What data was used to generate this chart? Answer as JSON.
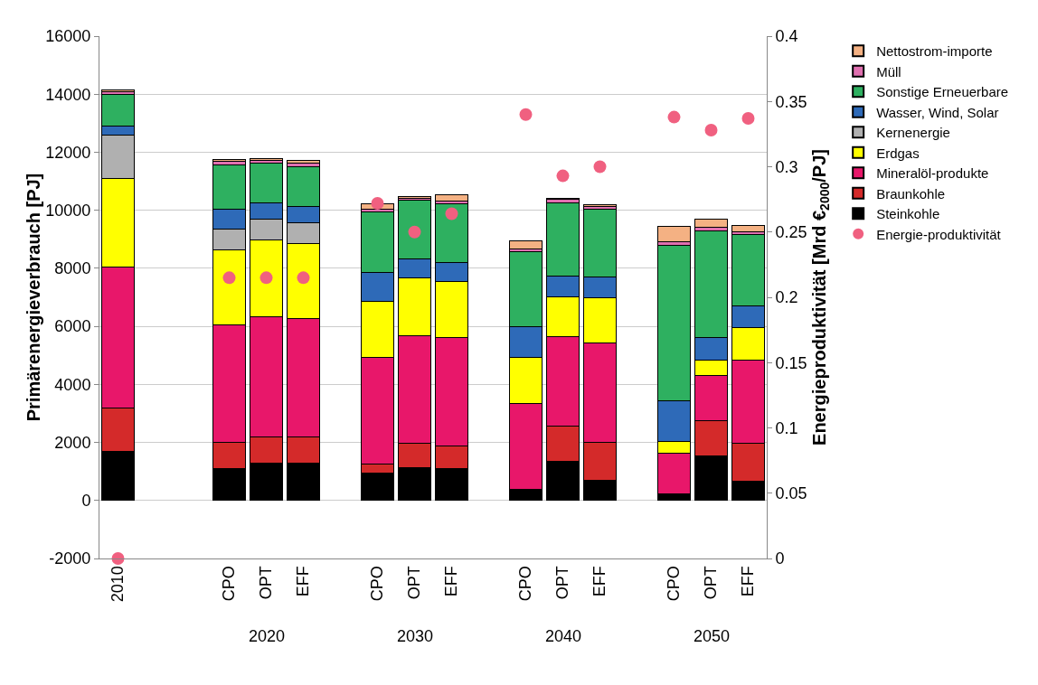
{
  "chart_data": {
    "type": "bar",
    "stacked": true,
    "ylabel": "Primärenergieverbrauch [PJ]",
    "y2label": "Energieproduktivität [Mrd €$_{2000}$/PJ]",
    "categories": [
      "2010",
      null,
      null,
      "CPO",
      "OPT",
      "EFF",
      null,
      "CPO",
      "OPT",
      "EFF",
      null,
      "CPO",
      "OPT",
      "EFF",
      null,
      "CPO",
      "OPT",
      "EFF"
    ],
    "annotations": [
      "2020",
      "2030",
      "2040",
      "2050"
    ],
    "ylim": [
      -2000,
      16000
    ],
    "yticks": [
      -2000,
      0,
      2000,
      4000,
      6000,
      8000,
      10000,
      12000,
      14000,
      16000
    ],
    "y2lim": [
      0,
      0.4
    ],
    "y2ticks": [
      0,
      0.05,
      0.1,
      0.15,
      0.2,
      0.25,
      0.3,
      0.35,
      0.4
    ],
    "grid": "y",
    "legend": "right",
    "marker": "circle",
    "series": [
      {
        "name": "Energie-produktivität",
        "type": "scatter",
        "axis": "y2",
        "color": "#f06080",
        "values": [
          0,
          null,
          null,
          0.215,
          0.215,
          0.215,
          null,
          0.272,
          0.25,
          0.264,
          null,
          0.34,
          0.293,
          0.3,
          null,
          0.338,
          0.328,
          0.337
        ]
      },
      {
        "name": "Steinkohle",
        "color": "#000000",
        "values": [
          1700,
          null,
          null,
          1100,
          1300,
          1300,
          null,
          950,
          1140,
          1100,
          null,
          380,
          1360,
          700,
          null,
          220,
          1540,
          660
        ]
      },
      {
        "name": "Braunkohle",
        "color": "#d42a2a",
        "values": [
          1500,
          null,
          null,
          900,
          880,
          880,
          null,
          290,
          830,
          790,
          null,
          null,
          1200,
          1300,
          null,
          null,
          1220,
          1310
        ]
      },
      {
        "name": "Mineralöl-produkte",
        "color": "#e8176a",
        "values": [
          4830,
          null,
          null,
          4060,
          4150,
          4100,
          null,
          3680,
          3710,
          3730,
          null,
          2970,
          3090,
          3420,
          null,
          1400,
          1560,
          2860
        ]
      },
      {
        "name": "Erdgas",
        "color": "#ffff00",
        "values": [
          3080,
          null,
          null,
          2570,
          2650,
          2570,
          null,
          1950,
          2000,
          1940,
          null,
          1570,
          1370,
          1560,
          null,
          410,
          530,
          1120
        ]
      },
      {
        "name": "Kernenergie",
        "color": "#b0b0b0",
        "values": [
          1490,
          null,
          null,
          710,
          710,
          710,
          null,
          null,
          null,
          null,
          null,
          null,
          null,
          null,
          null,
          null,
          null,
          null
        ]
      },
      {
        "name": "Wasser, Wind, Solar",
        "color": "#2e6ab8",
        "values": [
          300,
          null,
          null,
          700,
          560,
          580,
          null,
          990,
          640,
          650,
          null,
          1070,
          710,
          730,
          null,
          1400,
          770,
          750
        ]
      },
      {
        "name": "Sonstige Erneuerbare",
        "color": "#2eb060",
        "values": [
          1090,
          null,
          null,
          1530,
          1370,
          1370,
          null,
          2080,
          2020,
          2010,
          null,
          2590,
          2540,
          2330,
          null,
          5370,
          3680,
          2480
        ]
      },
      {
        "name": "Müll",
        "color": "#e070b0",
        "values": [
          100,
          null,
          null,
          120,
          100,
          130,
          null,
          100,
          80,
          100,
          null,
          100,
          100,
          80,
          null,
          100,
          100,
          80
        ]
      },
      {
        "name": "Nettostrom-importe",
        "color": "#f4b183",
        "values": [
          70,
          null,
          null,
          50,
          70,
          80,
          null,
          180,
          50,
          200,
          null,
          270,
          50,
          80,
          null,
          530,
          300,
          220
        ]
      }
    ]
  }
}
